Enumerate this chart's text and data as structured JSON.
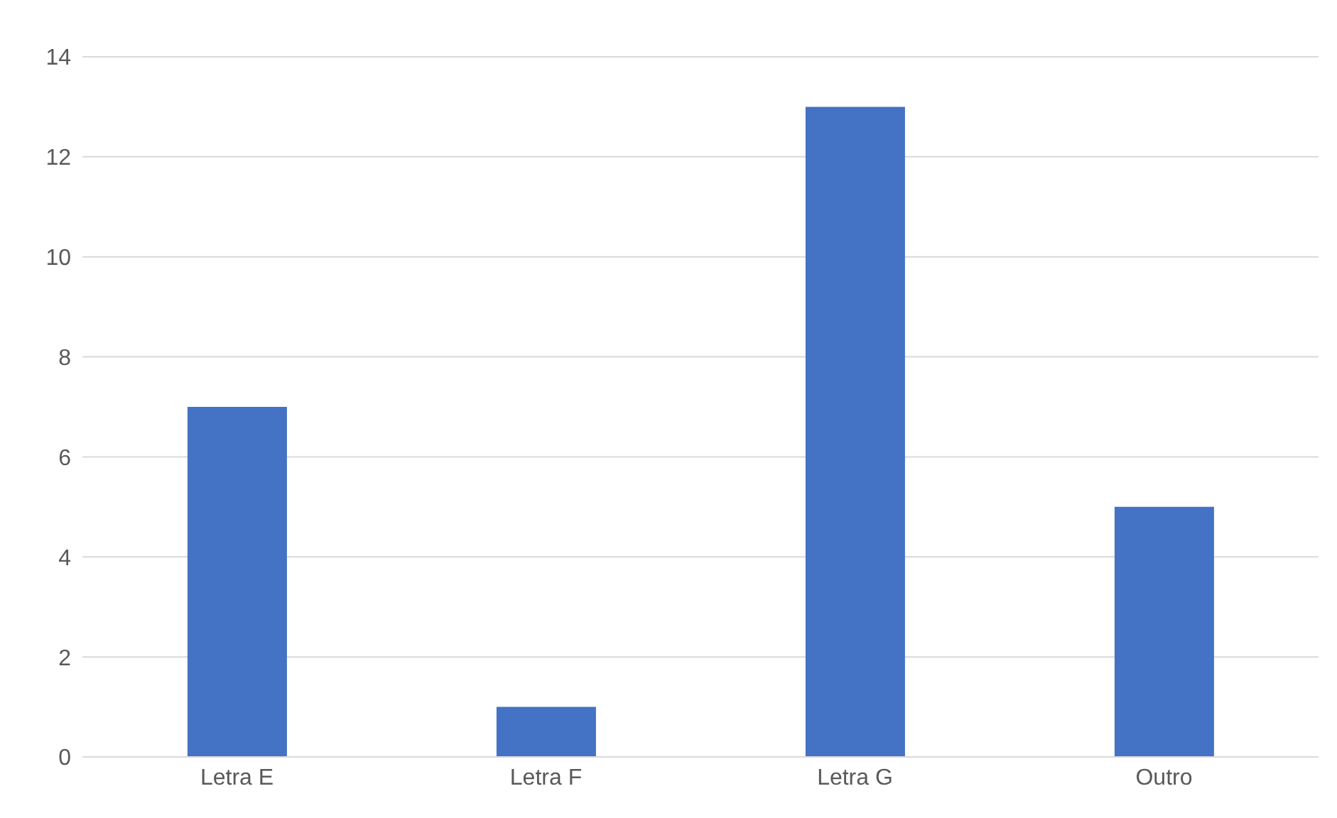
{
  "chart_data": {
    "type": "bar",
    "categories": [
      "Letra E",
      "Letra F",
      "Letra G",
      "Outro"
    ],
    "values": [
      7,
      1,
      13,
      5
    ],
    "color": "#4472c4",
    "ylim": [
      0,
      14
    ],
    "yticks": [
      0,
      2,
      4,
      6,
      8,
      10,
      12,
      14
    ],
    "grid": "y",
    "legend": false
  }
}
